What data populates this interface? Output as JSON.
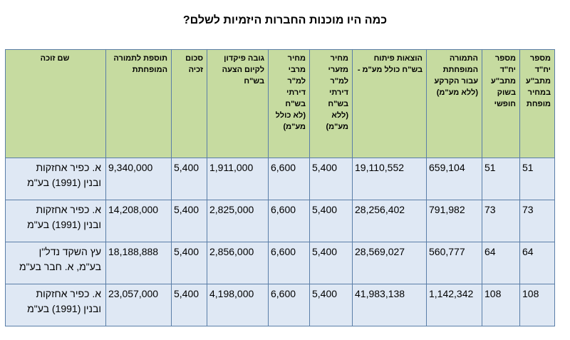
{
  "title": "כמה היו מוכנות החברות היזמיות לשלם?",
  "headers": {
    "units_mitachat": "מספר יח\"ד מתב\"ע במחיר מופחת",
    "units_free": "מספר יח\"ד מתב\"ע בשוק חופשי",
    "land_comp": "התמורה המופחתת עבור הקרקע (ללא מע\"מ)",
    "dev_costs": "הוצאות פיתוח בש\"ח כולל מע\"מ -",
    "min_price": "מחיר מזערי למ\"ר דירתי בש\"ח (ללא מע\"מ)",
    "max_price": "מחיר מרבי למ\"ר דירתי בש\"ח (לא כולל מע\"מ)",
    "deposit": "גובה פיקדון לקיום הצעה בש\"ח",
    "win_sum": "סכום זכיה",
    "addition": "תוספת לתמורה המופחתת",
    "winner": "שם זוכה"
  },
  "rows": [
    {
      "units_mitachat": "51",
      "units_free": "51",
      "land_comp": "659,104",
      "dev_costs": "19,110,552",
      "min_price": "5,400",
      "max_price": "6,600",
      "deposit": "1,911,000",
      "win_sum": "5,400",
      "addition": "9,340,000",
      "winner_l1": "א. כפיר אחזקות",
      "winner_l2": "ובנין (1991) בע\"מ"
    },
    {
      "units_mitachat": "73",
      "units_free": "73",
      "land_comp": "791,982",
      "dev_costs": "28,256,402",
      "min_price": "5,400",
      "max_price": "6,600",
      "deposit": "2,825,000",
      "win_sum": "5,400",
      "addition": "14,208,000",
      "winner_l1": "א. כפיר אחזקות",
      "winner_l2": "ובנין (1991) בע\"מ"
    },
    {
      "units_mitachat": "64",
      "units_free": "64",
      "land_comp": "560,777",
      "dev_costs": "28,569,027",
      "min_price": "5,400",
      "max_price": "6,600",
      "deposit": "2,856,000",
      "win_sum": "5,400",
      "addition": "18,188,888",
      "winner_l1": "עץ השקד נדל\"ן",
      "winner_l2": "בע\"מ, א. חבר בע\"מ"
    },
    {
      "units_mitachat": "108",
      "units_free": "108",
      "land_comp": "1,142,342",
      "dev_costs": "41,983,138",
      "min_price": "5,400",
      "max_price": "6,600",
      "deposit": "4,198,000",
      "win_sum": "5,400",
      "addition": "23,057,000",
      "winner_l1": "א. כפיר אחזקות",
      "winner_l2": "ובנין (1991) בע\"מ"
    }
  ]
}
